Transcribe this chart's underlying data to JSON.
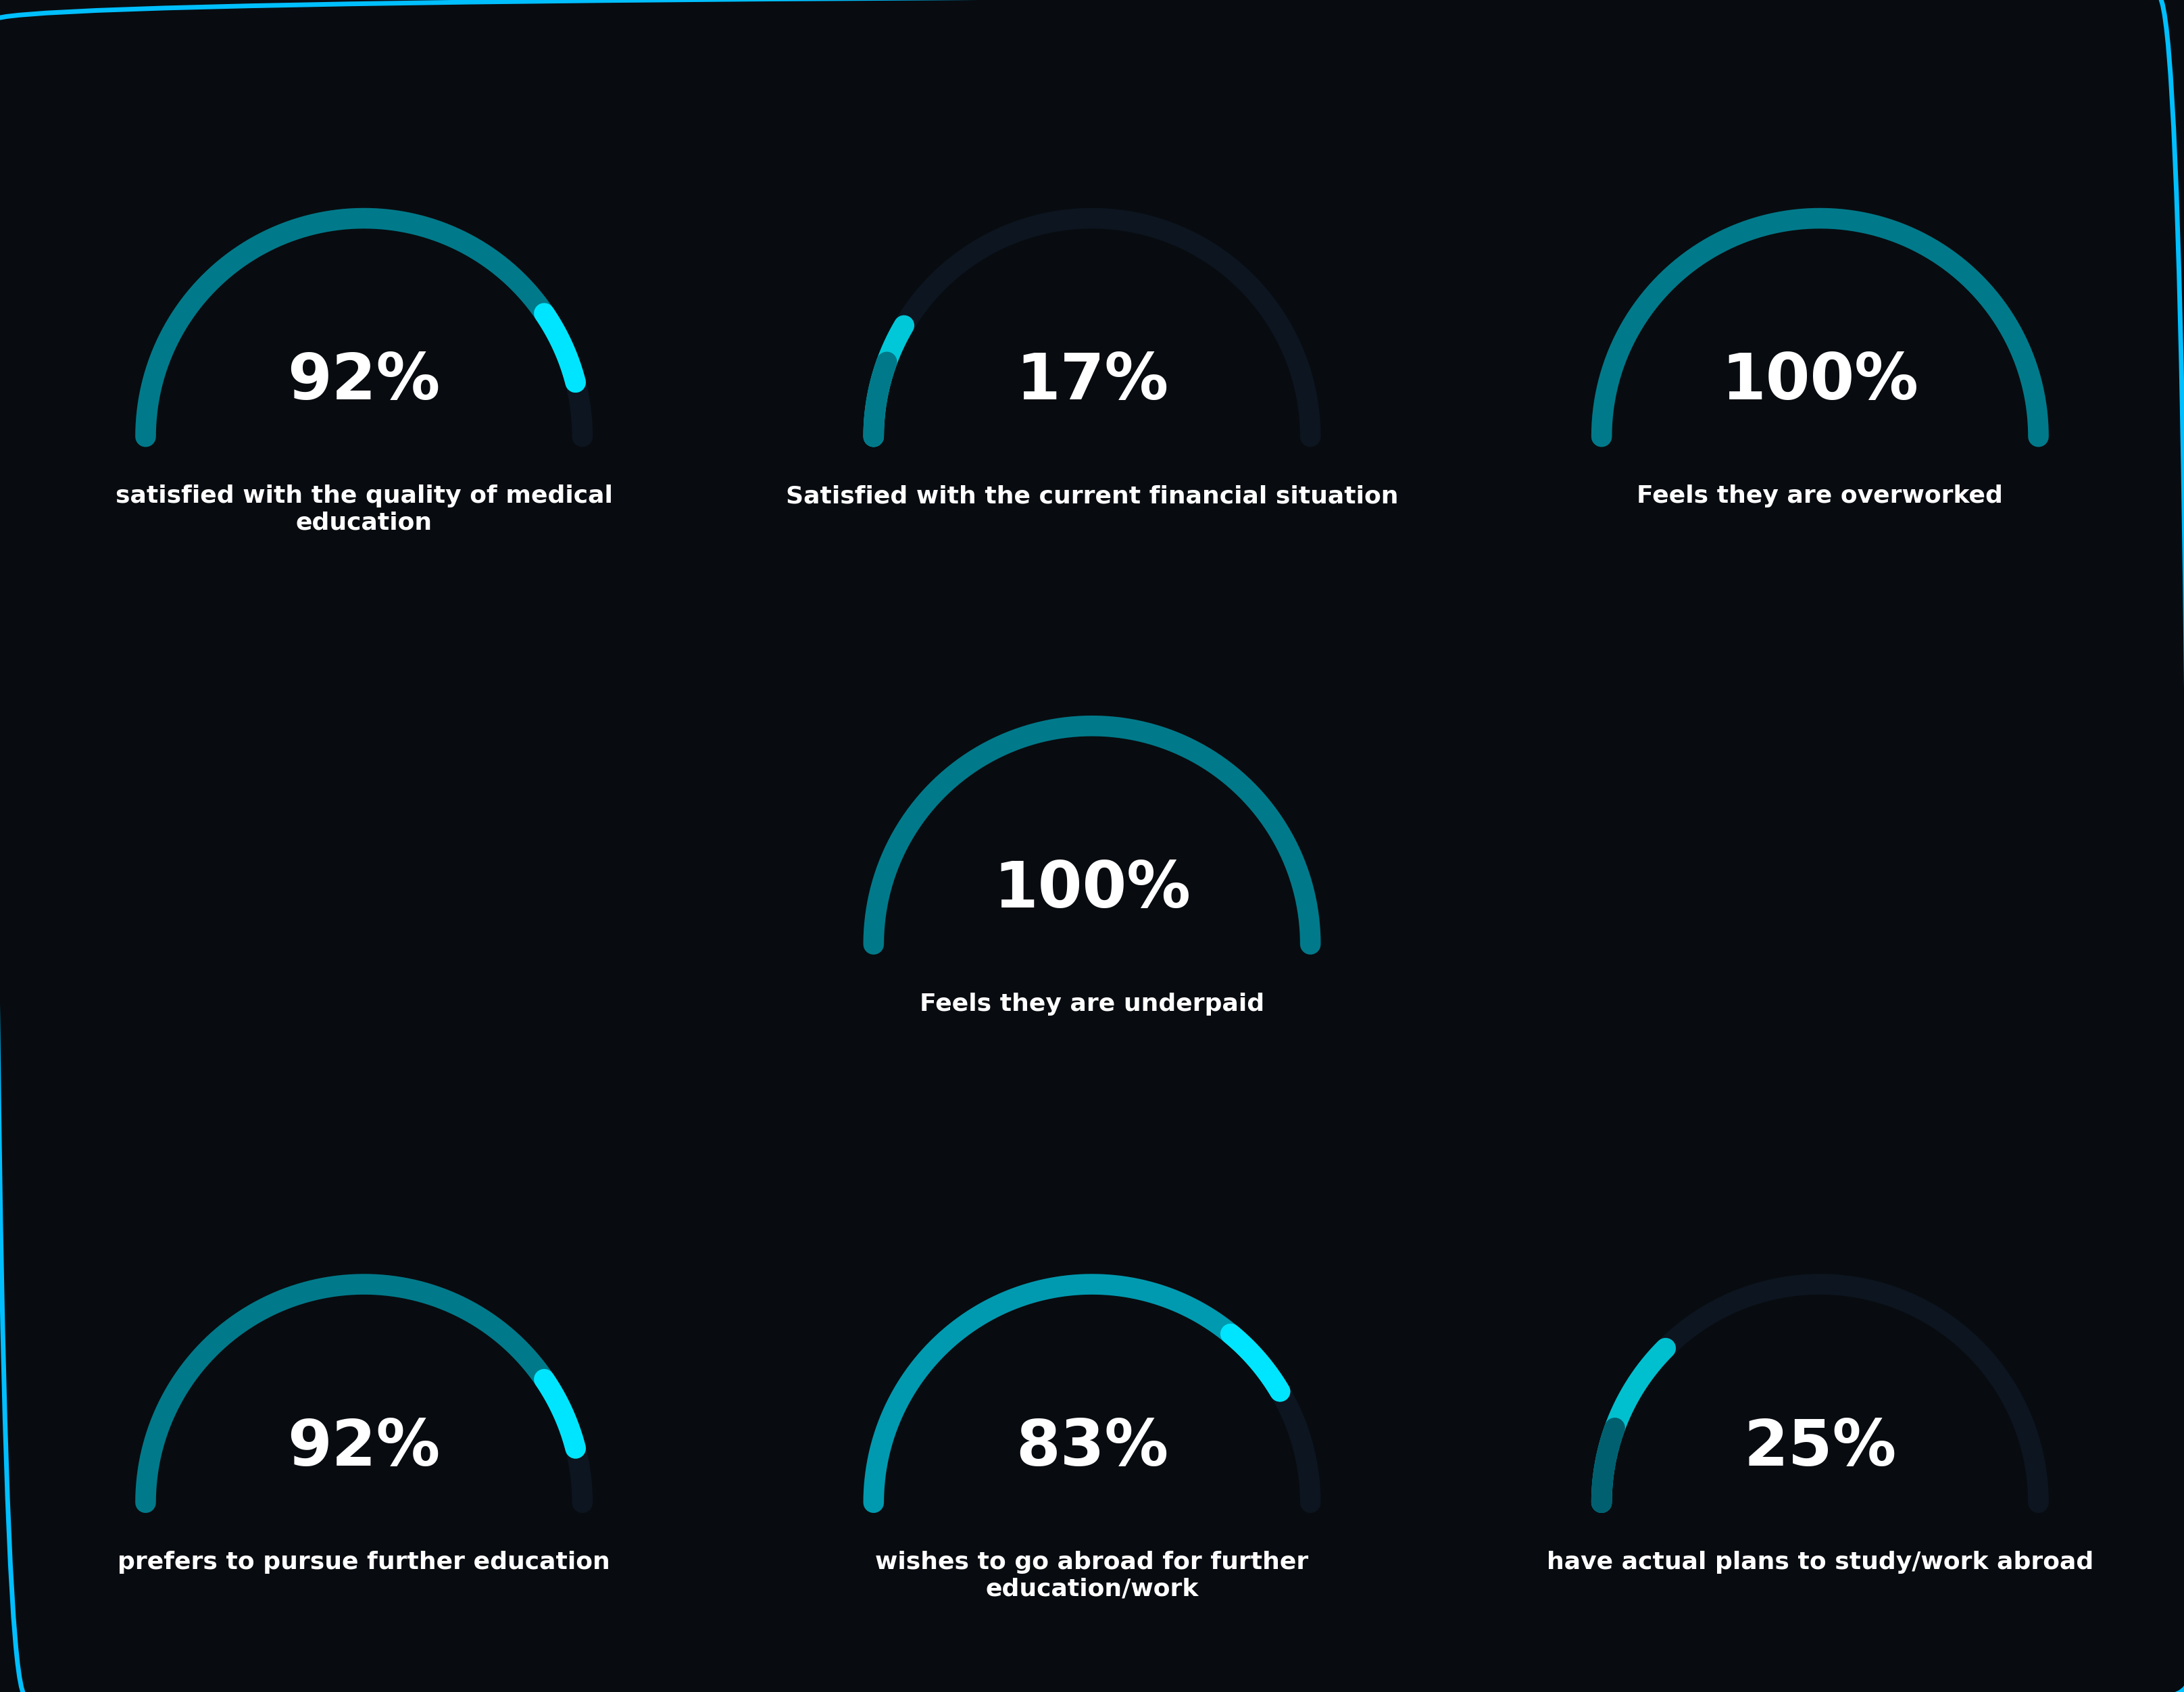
{
  "background_color": "#080C10",
  "border_color": "#00BFFF",
  "gauges": [
    {
      "value": 92,
      "label": "satisfied with the quality of medical\neducation",
      "col": 0,
      "row": 0,
      "arc_color_main": "#007A8A",
      "arc_color_tip": "#00E5FF",
      "tip_at_end": true
    },
    {
      "value": 17,
      "label": "Satisfied with the current financial situation",
      "col": 1,
      "row": 0,
      "arc_color_main": "#00C8D8",
      "arc_color_tip": "#007A8A",
      "tip_at_end": false
    },
    {
      "value": 100,
      "label": "Feels they are overworked",
      "col": 2,
      "row": 0,
      "arc_color_main": "#007A8A",
      "arc_color_tip": "#007A8A",
      "tip_at_end": false
    },
    {
      "value": 100,
      "label": "Feels they are underpaid",
      "col": 1,
      "row": 1,
      "arc_color_main": "#007A8A",
      "arc_color_tip": "#007A8A",
      "tip_at_end": false
    },
    {
      "value": 92,
      "label": "prefers to pursue further education",
      "col": 0,
      "row": 2,
      "arc_color_main": "#007A8A",
      "arc_color_tip": "#00E5FF",
      "tip_at_end": true
    },
    {
      "value": 83,
      "label": "wishes to go abroad for further\neducation/work",
      "col": 1,
      "row": 2,
      "arc_color_main": "#009AB0",
      "arc_color_tip": "#00E5FF",
      "tip_at_end": true
    },
    {
      "value": 25,
      "label": "have actual plans to study/work abroad",
      "col": 2,
      "row": 2,
      "arc_color_main": "#00C0D0",
      "arc_color_tip": "#006070",
      "tip_at_end": false
    }
  ],
  "percent_fontsize": 68,
  "label_fontsize": 26,
  "arc_linewidth": 22,
  "fig_width": 32.32,
  "fig_height": 25.04
}
